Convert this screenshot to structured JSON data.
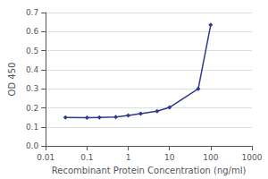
{
  "chart_data": {
    "type": "line",
    "x": [
      0.03,
      0.1,
      0.2,
      0.5,
      1,
      2,
      5,
      10,
      50,
      100
    ],
    "values": [
      0.15,
      0.148,
      0.15,
      0.152,
      0.16,
      0.17,
      0.182,
      0.202,
      0.3,
      0.635
    ],
    "color": "#2d3a8a",
    "marker": "diamond",
    "xlabel": "Recombinant Protein Concentration (ng/ml)",
    "ylabel": "OD 450",
    "log": "x",
    "xlim": [
      0.01,
      1000
    ],
    "xticks": [
      0.01,
      0.1,
      1,
      10,
      100,
      1000
    ],
    "ylim": [
      0.0,
      0.7
    ],
    "yticks": [
      {
        "value": 0.0,
        "label": "0.0"
      },
      0.1,
      0.2,
      0.3,
      0.4,
      0.5,
      0.6,
      0.7
    ],
    "grid": true
  }
}
